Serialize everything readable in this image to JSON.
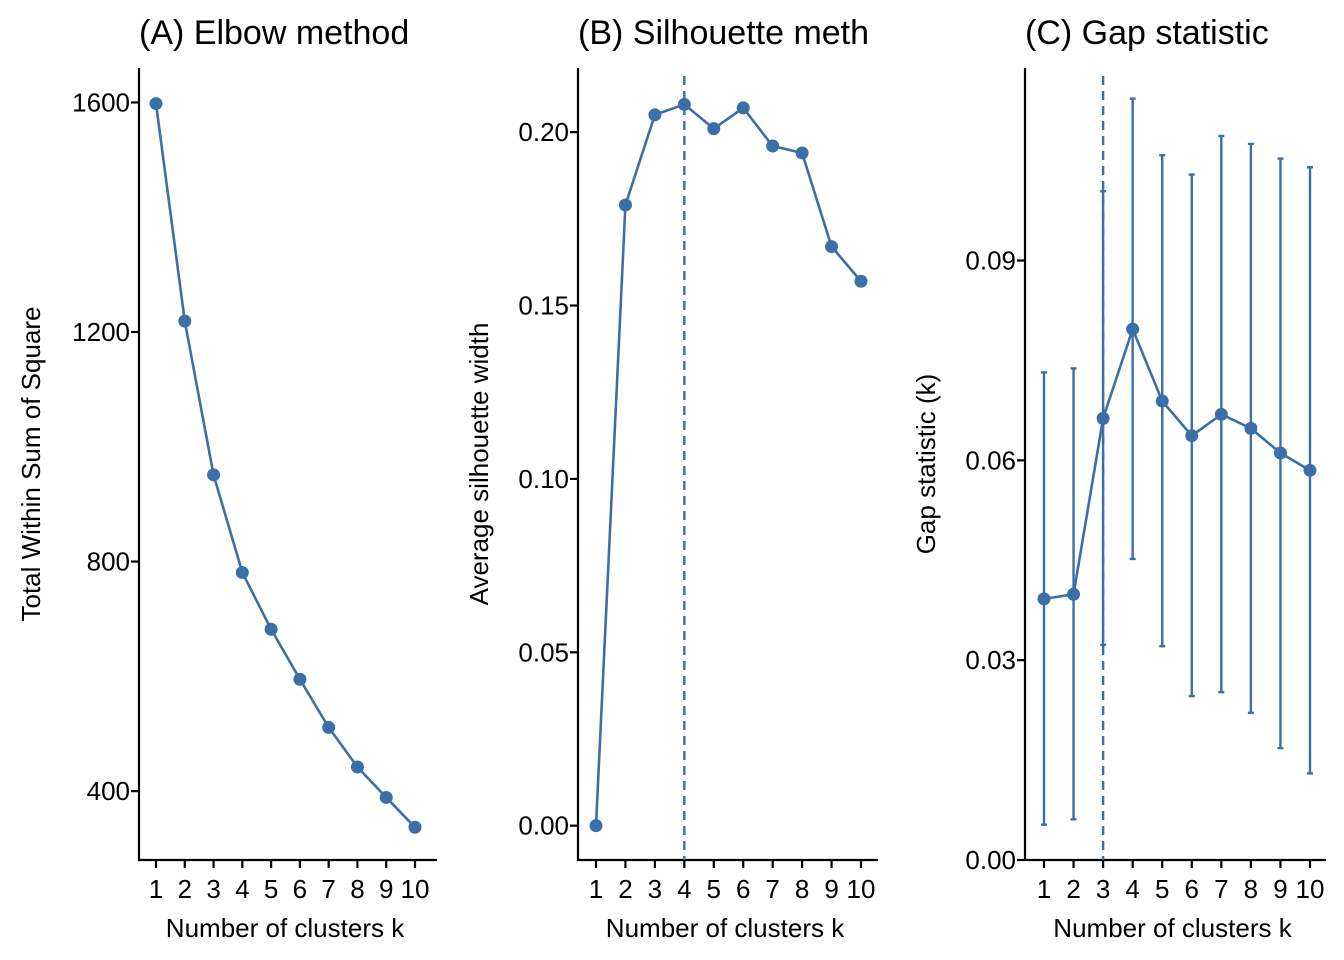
{
  "chart_data": [
    {
      "type": "line",
      "title": "(A) Elbow method",
      "xlabel": "Number of clusters k",
      "ylabel": "Total Within Sum of Square",
      "x": [
        1,
        2,
        3,
        4,
        5,
        6,
        7,
        8,
        9,
        10
      ],
      "y": [
        1598,
        1219,
        951,
        781,
        682,
        595,
        511,
        442,
        389,
        337
      ],
      "ylim": [
        280,
        1660
      ],
      "yticks": [
        400,
        800,
        1200,
        1600
      ],
      "ytick_labels": [
        "400",
        "800",
        "1200",
        "1600"
      ],
      "xtick_labels": [
        "1",
        "2",
        "3",
        "4",
        "5",
        "6",
        "7",
        "8",
        "9",
        "10"
      ],
      "color": "#3B6FA8",
      "grid": false
    },
    {
      "type": "line",
      "title": "(B) Silhouette meth",
      "xlabel": "Number of clusters k",
      "ylabel": "Average silhouette width",
      "x": [
        1,
        2,
        3,
        4,
        5,
        6,
        7,
        8,
        9,
        10
      ],
      "y": [
        0.0,
        0.179,
        0.205,
        0.208,
        0.201,
        0.207,
        0.196,
        0.194,
        0.167,
        0.157
      ],
      "ylim": [
        -0.0099,
        0.2185
      ],
      "yticks": [
        0.0,
        0.05,
        0.1,
        0.15,
        0.2
      ],
      "ytick_labels": [
        "0.00",
        "0.05",
        "0.10",
        "0.15",
        "0.20"
      ],
      "xtick_labels": [
        "1",
        "2",
        "3",
        "4",
        "5",
        "6",
        "7",
        "8",
        "9",
        "10"
      ],
      "reference_line_x": 4,
      "color": "#3B6FA8",
      "grid": false
    },
    {
      "type": "line",
      "title": "(C) Gap statistic",
      "xlabel": "Number of clusters k",
      "ylabel": "Gap statistic (k)",
      "x": [
        1,
        2,
        3,
        4,
        5,
        6,
        7,
        8,
        9,
        10
      ],
      "y": [
        0.0392,
        0.0399,
        0.0663,
        0.0797,
        0.0689,
        0.0637,
        0.0669,
        0.0648,
        0.0611,
        0.0585
      ],
      "error_low": [
        0.0053,
        0.0061,
        0.0323,
        0.0452,
        0.0321,
        0.0246,
        0.0252,
        0.0221,
        0.0168,
        0.013
      ],
      "error_high": [
        0.0732,
        0.0738,
        0.1004,
        0.1143,
        0.1058,
        0.1029,
        0.1087,
        0.1075,
        0.1053,
        0.104
      ],
      "ylim": [
        0.0,
        0.1189
      ],
      "yticks": [
        0.0,
        0.03,
        0.06,
        0.09
      ],
      "ytick_labels": [
        "0.00",
        "0.03",
        "0.06",
        "0.09"
      ],
      "xtick_labels": [
        "1",
        "2",
        "3",
        "4",
        "5",
        "6",
        "7",
        "8",
        "9",
        "10"
      ],
      "reference_line_x": 3,
      "color": "#3B6FA8",
      "grid": false
    }
  ]
}
